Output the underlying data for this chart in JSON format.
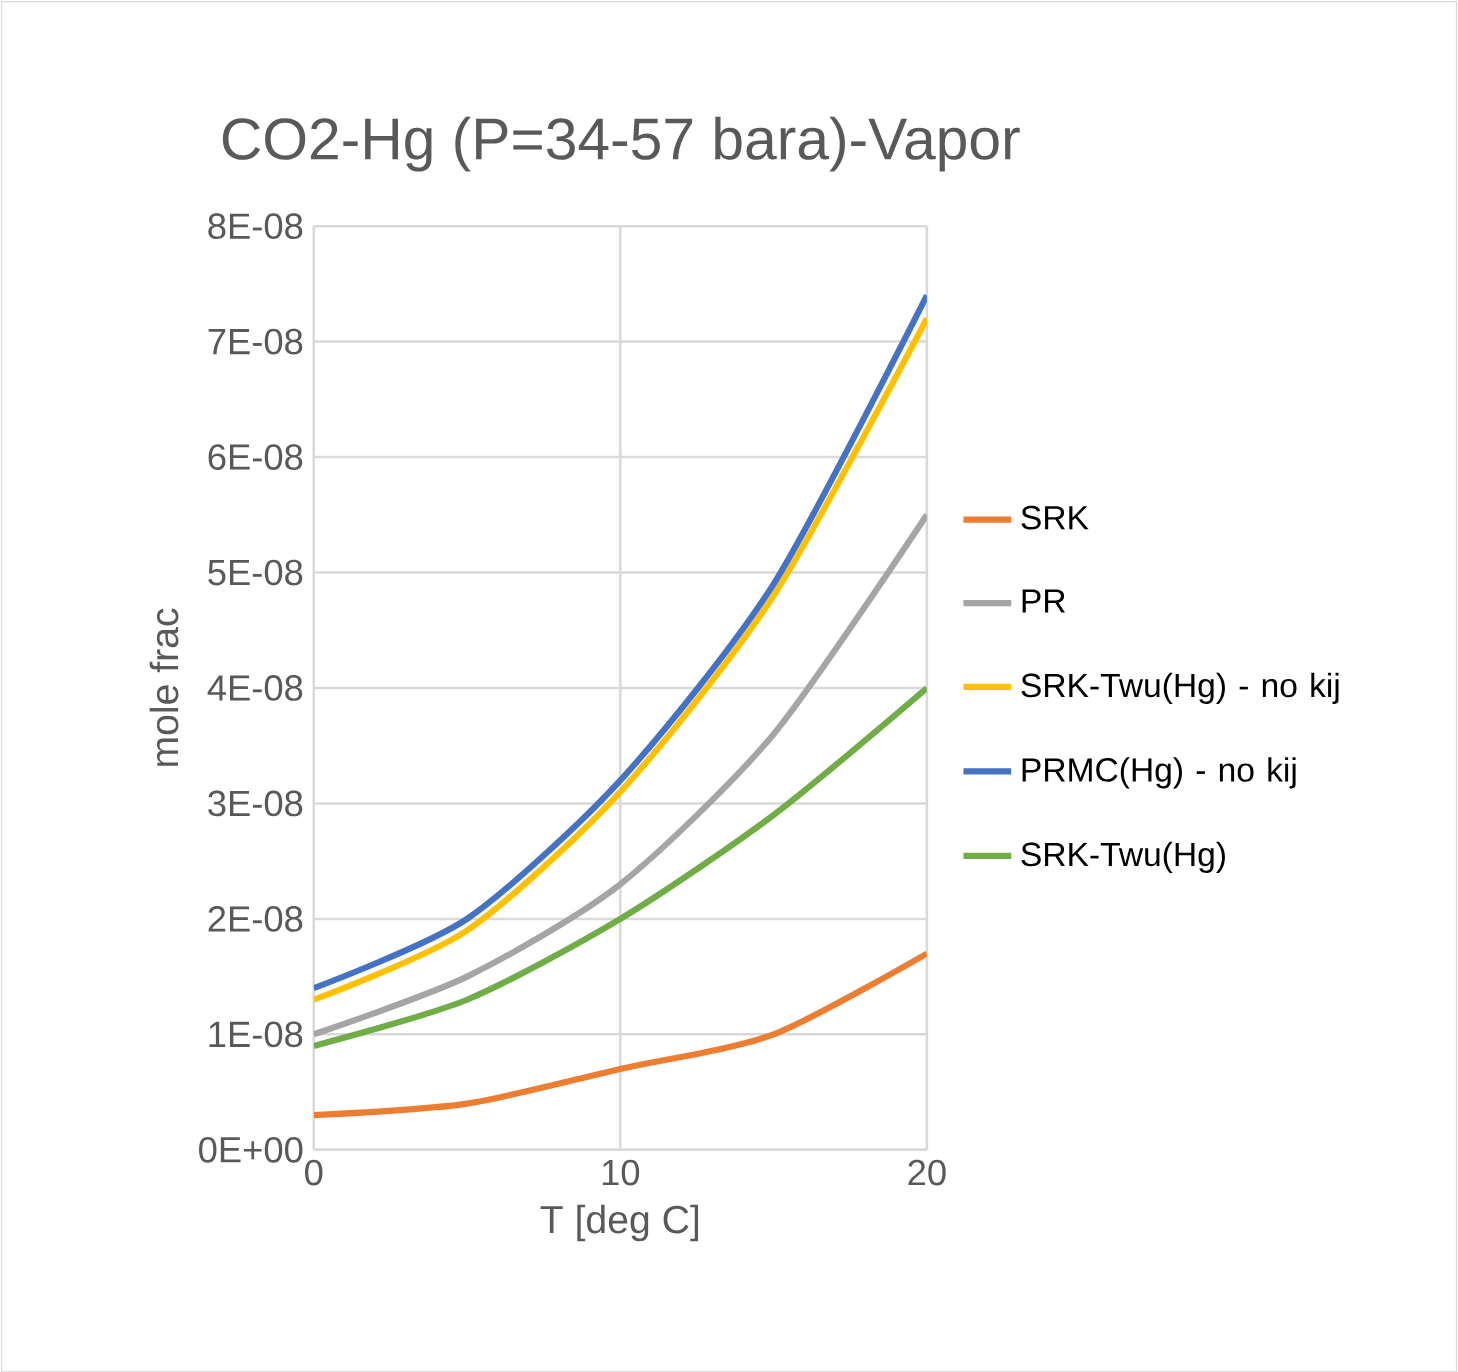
{
  "chart_data": {
    "type": "line",
    "title": "CO2-Hg (P=34-57 bara)-Vapor",
    "xlabel": "T [deg C]",
    "ylabel": "mole frac",
    "x": [
      0,
      5,
      10,
      15,
      20
    ],
    "series": [
      {
        "name": "SRK",
        "color": "#ed7d31",
        "values": [
          3e-09,
          4e-09,
          7e-09,
          1e-08,
          1.7e-08
        ]
      },
      {
        "name": "PR",
        "color": "#a5a5a5",
        "values": [
          1e-08,
          1.5e-08,
          2.3e-08,
          3.6e-08,
          5.5e-08
        ]
      },
      {
        "name": "SRK-Twu(Hg) - no kij",
        "color": "#ffc000",
        "values": [
          1.3e-08,
          1.9e-08,
          3.1e-08,
          4.8e-08,
          7.2e-08
        ]
      },
      {
        "name": "PRMC(Hg) - no kij",
        "color": "#4472c4",
        "values": [
          1.4e-08,
          2e-08,
          3.2e-08,
          4.9e-08,
          7.4e-08
        ]
      },
      {
        "name": "SRK-Twu(Hg)",
        "color": "#70ad47",
        "values": [
          9e-09,
          1.3e-08,
          2e-08,
          2.9e-08,
          4e-08
        ]
      }
    ],
    "xlim": [
      0,
      20
    ],
    "xticks": [
      0,
      10,
      20
    ],
    "ylim": [
      0,
      8e-08
    ],
    "yticks": [
      {
        "value": 0,
        "label": "0E+00"
      },
      {
        "value": 1e-08,
        "label": "1E-08"
      },
      {
        "value": 2e-08,
        "label": "2E-08"
      },
      {
        "value": 3e-08,
        "label": "3E-08"
      },
      {
        "value": 4e-08,
        "label": "4E-08"
      },
      {
        "value": 5e-08,
        "label": "5E-08"
      },
      {
        "value": 6e-08,
        "label": "6E-08"
      },
      {
        "value": 7e-08,
        "label": "7E-08"
      },
      {
        "value": 8e-08,
        "label": "8E-08"
      }
    ],
    "grid": true,
    "legend": "right",
    "marker": "none",
    "line_style": "solid"
  }
}
